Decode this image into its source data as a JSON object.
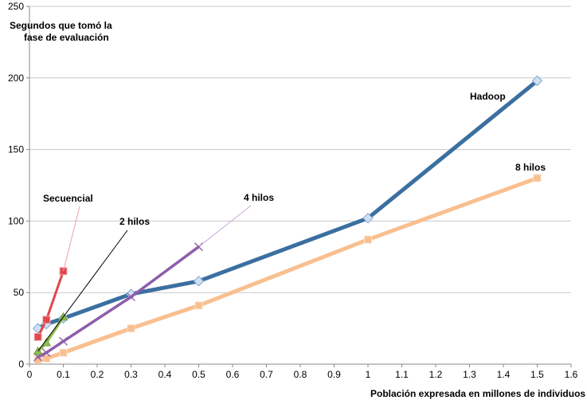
{
  "chart_data": {
    "type": "line",
    "ylabel_line1": "Segundos que tomó la",
    "ylabel_line2": "fase de evaluación",
    "xlabel": "Población expresada en millones de individuos",
    "xlim": [
      0,
      1.6
    ],
    "ylim": [
      0,
      250
    ],
    "x_ticks": [
      "0",
      "0.1",
      "0.2",
      "0.3",
      "0.4",
      "0.5",
      "0.6",
      "0.7",
      "0.8",
      "0.9",
      "1",
      "1.1",
      "1.2",
      "1.3",
      "1.4",
      "1.5",
      "1.6"
    ],
    "y_ticks": [
      "0",
      "50",
      "100",
      "150",
      "200",
      "250"
    ],
    "grid": "horizontal",
    "series": [
      {
        "name": "8 hilos",
        "color": "#F9BF8F",
        "marker": "square",
        "points": [
          [
            0.025,
            3
          ],
          [
            0.05,
            4
          ],
          [
            0.1,
            8
          ],
          [
            0.3,
            25
          ],
          [
            0.5,
            41
          ],
          [
            1.0,
            87
          ],
          [
            1.5,
            130
          ]
        ]
      },
      {
        "name": "Hadoop",
        "color": "#3B6FA0",
        "marker": "diamond",
        "points": [
          [
            0.025,
            25
          ],
          [
            0.05,
            28
          ],
          [
            0.1,
            32
          ],
          [
            0.3,
            49
          ],
          [
            0.5,
            58
          ],
          [
            1.0,
            102
          ],
          [
            1.5,
            198
          ]
        ]
      },
      {
        "name": "4 hilos",
        "color": "#8E5DAB",
        "marker": "x",
        "points": [
          [
            0.025,
            5
          ],
          [
            0.05,
            8
          ],
          [
            0.1,
            16
          ],
          [
            0.3,
            47
          ],
          [
            0.5,
            82
          ]
        ]
      },
      {
        "name": "2 hilos",
        "color": "#92C050",
        "marker": "triangle",
        "points": [
          [
            0.025,
            9
          ],
          [
            0.05,
            15
          ],
          [
            0.1,
            33
          ]
        ]
      },
      {
        "name": "Secuencial",
        "color": "#E0474C",
        "marker": "square",
        "points": [
          [
            0.025,
            19
          ],
          [
            0.05,
            31
          ],
          [
            0.1,
            65
          ]
        ]
      }
    ],
    "annotations": [
      {
        "text": "Hadoop",
        "series": "Hadoop",
        "leader": false
      },
      {
        "text": "8 hilos",
        "series": "8 hilos",
        "leader": false
      },
      {
        "text": "4 hilos",
        "series": "4 hilos",
        "leader": true
      },
      {
        "text": "2 hilos",
        "series": "2 hilos",
        "leader": true
      },
      {
        "text": "Secuencial",
        "series": "Secuencial",
        "leader": true
      }
    ]
  }
}
